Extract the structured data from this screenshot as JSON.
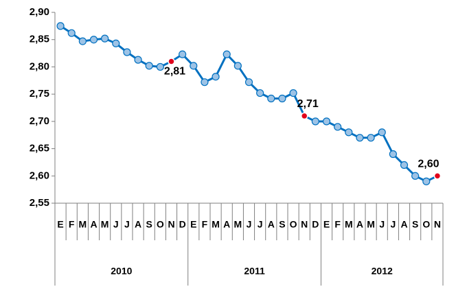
{
  "chart_data": {
    "type": "line",
    "categories": [
      "E",
      "F",
      "M",
      "A",
      "M",
      "J",
      "J",
      "A",
      "S",
      "O",
      "N",
      "D",
      "E",
      "F",
      "M",
      "A",
      "M",
      "J",
      "J",
      "A",
      "S",
      "O",
      "N",
      "D",
      "E",
      "F",
      "M",
      "A",
      "M",
      "J",
      "J",
      "A",
      "S",
      "O",
      "N"
    ],
    "groups": [
      "2010",
      "2011",
      "2012"
    ],
    "series": [
      {
        "color": "#0070c0",
        "marker_color": "#9dc3e6",
        "highlight_color": "#e0001b",
        "values": [
          2.875,
          2.862,
          2.847,
          2.85,
          2.852,
          2.843,
          2.827,
          2.813,
          2.802,
          2.8,
          2.81,
          2.823,
          2.802,
          2.772,
          2.782,
          2.823,
          2.802,
          2.772,
          2.752,
          2.742,
          2.742,
          2.752,
          2.71,
          2.7,
          2.7,
          2.69,
          2.68,
          2.67,
          2.67,
          2.68,
          2.64,
          2.62,
          2.6,
          2.59,
          2.6
        ],
        "value_labels": [
          null,
          null,
          null,
          null,
          null,
          null,
          null,
          null,
          null,
          null,
          "2,81",
          null,
          null,
          null,
          null,
          null,
          null,
          null,
          null,
          null,
          null,
          null,
          "2,71",
          null,
          null,
          null,
          null,
          null,
          null,
          null,
          null,
          null,
          null,
          null,
          "2,60"
        ]
      }
    ],
    "ylim": [
      2.55,
      2.9
    ],
    "yticks": [
      {
        "value": 2.55,
        "label": "2,55"
      },
      {
        "value": 2.6,
        "label": "2,60"
      },
      {
        "value": 2.65,
        "label": "2,65"
      },
      {
        "value": 2.7,
        "label": "2,70"
      },
      {
        "value": 2.75,
        "label": "2,75"
      },
      {
        "value": 2.8,
        "label": "2,80"
      },
      {
        "value": 2.85,
        "label": "2,85"
      },
      {
        "value": 2.9,
        "label": "2,90"
      }
    ],
    "grid": false
  }
}
